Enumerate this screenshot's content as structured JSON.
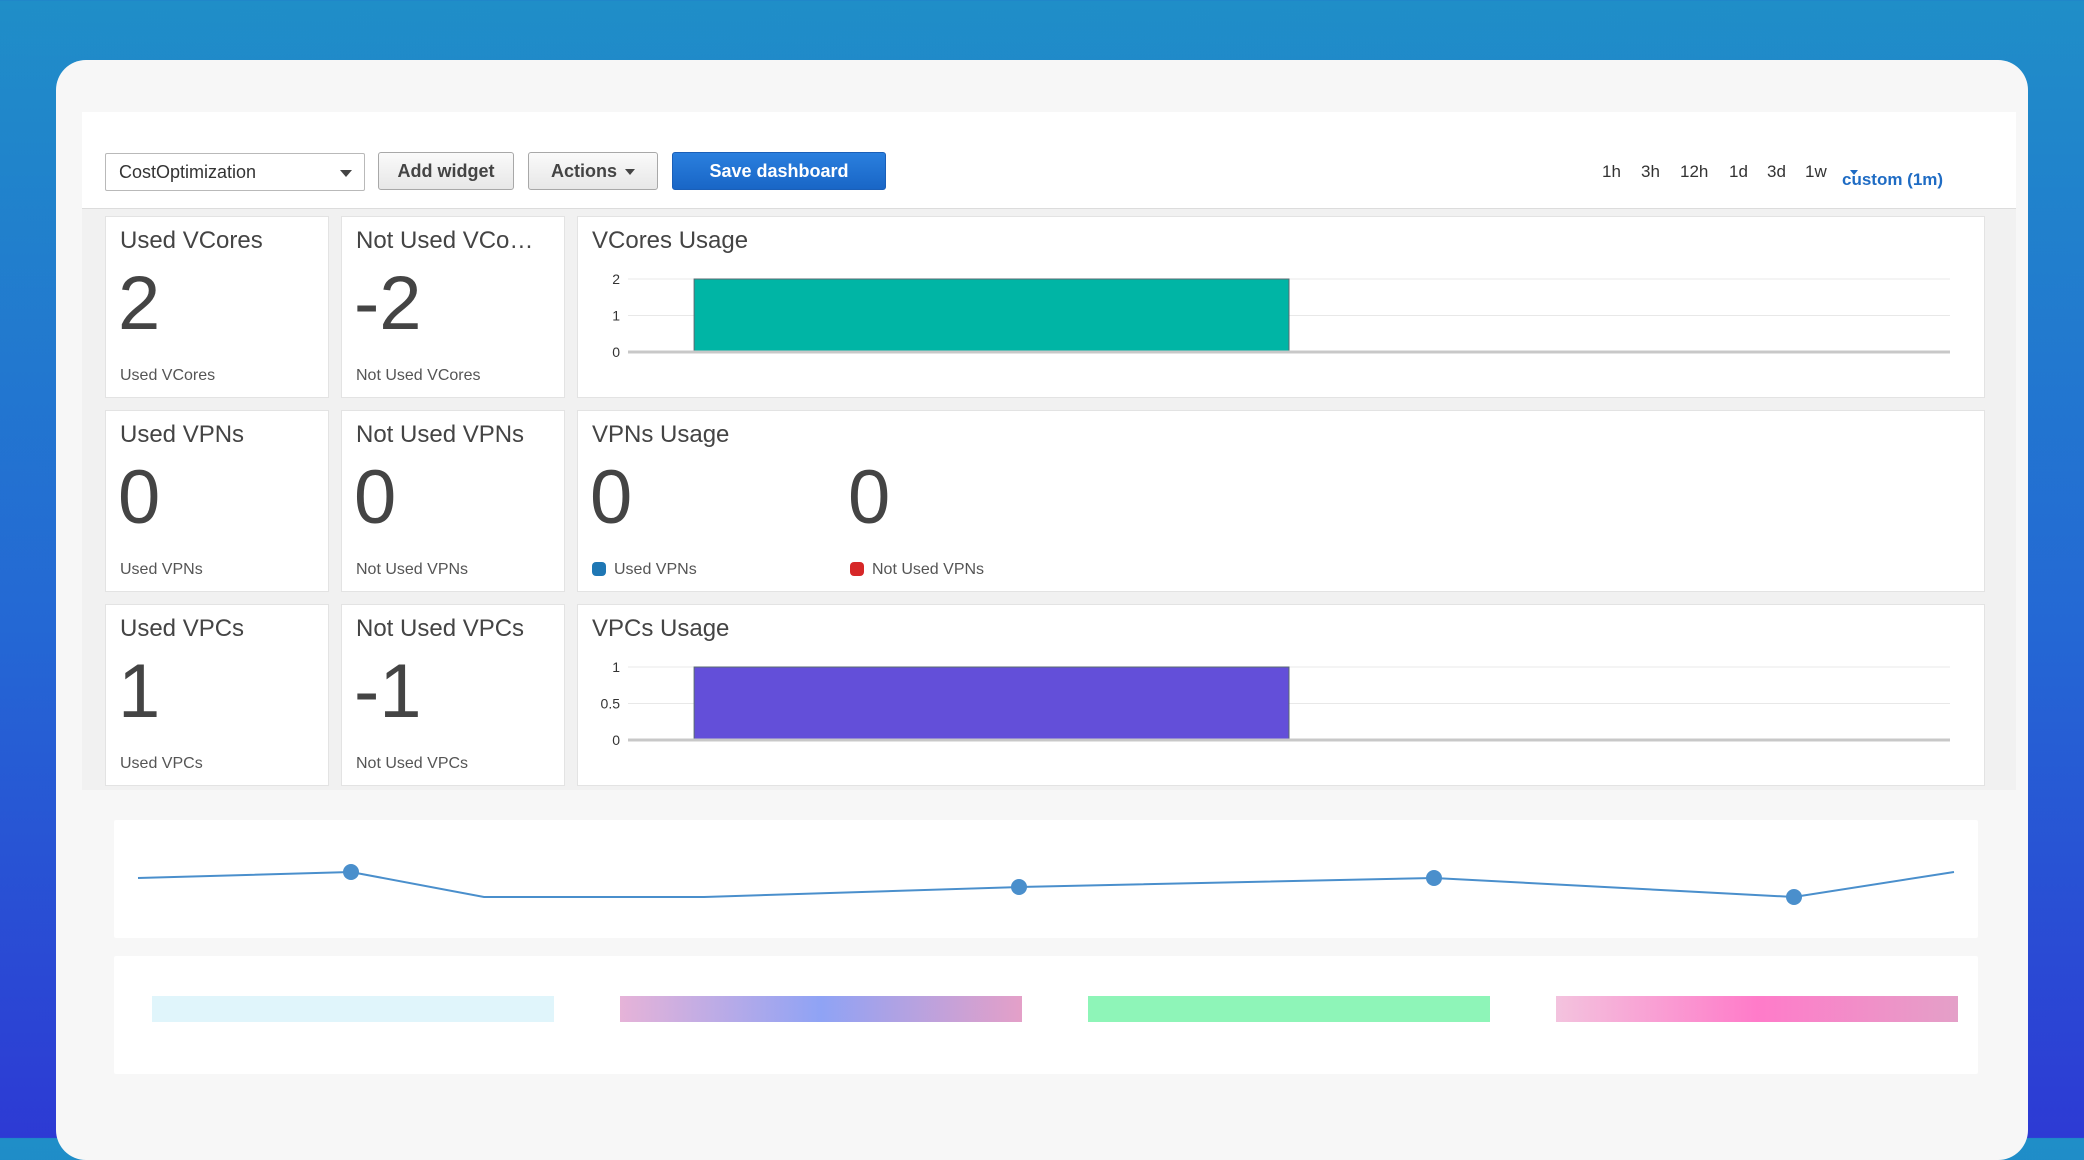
{
  "toolbar": {
    "dashboard_select": "CostOptimization",
    "add_widget": "Add widget",
    "actions": "Actions",
    "save_dashboard": "Save dashboard",
    "time_ranges": [
      "1h",
      "3h",
      "12h",
      "1d",
      "3d",
      "1w"
    ],
    "custom_range": "custom (1m)"
  },
  "widgets": {
    "used_vcores": {
      "title": "Used VCores",
      "value": "2",
      "label": "Used VCores"
    },
    "not_used_vcores": {
      "title": "Not Used VCo…",
      "value": "-2",
      "label": "Not Used VCores"
    },
    "vcores_usage": {
      "title": "VCores Usage"
    },
    "used_vpns": {
      "title": "Used VPNs",
      "value": "0",
      "label": "Used VPNs"
    },
    "not_used_vpns": {
      "title": "Not Used VPNs",
      "value": "0",
      "label": "Not Used VPNs"
    },
    "vpns_usage": {
      "title": "VPNs Usage",
      "used_value": "0",
      "not_used_value": "0",
      "used_label": "Used VPNs",
      "not_used_label": "Not Used VPNs",
      "used_color": "#1f77b4",
      "not_used_color": "#d62728"
    },
    "used_vpcs": {
      "title": "Used VPCs",
      "value": "1",
      "label": "Used VPCs"
    },
    "not_used_vpcs": {
      "title": "Not Used VPCs",
      "value": "-1",
      "label": "Not Used VPCs"
    },
    "vpcs_usage": {
      "title": "VPCs Usage"
    }
  },
  "chart_data": [
    {
      "type": "bar",
      "title": "VCores Usage",
      "yticks": [
        "0",
        "1",
        "2"
      ],
      "ylim": [
        0,
        2
      ],
      "series": [
        {
          "values": [
            2
          ],
          "color": "#00b5a5"
        }
      ],
      "bar_span_fraction": [
        0.05,
        0.5
      ],
      "grid": true
    },
    {
      "type": "bar",
      "title": "VPCs Usage",
      "yticks": [
        "0",
        "0.5",
        "1"
      ],
      "ylim": [
        0,
        1
      ],
      "series": [
        {
          "values": [
            1
          ],
          "color": "#634fd9"
        }
      ],
      "bar_span_fraction": [
        0.05,
        0.5
      ],
      "grid": true
    }
  ],
  "decor": {
    "line_color": "#4a8fcc",
    "swatches": [
      "linear-gradient(90deg,#e0f5fb,#e0f5fb)",
      "linear-gradient(90deg,#e6b3d8,#8fa3f5,#e4a0c8)",
      "linear-gradient(90deg,#8ef5b8,#8ef5b8)",
      "linear-gradient(90deg,#f3c3de,#ff7bc9,#e4a0c8)"
    ]
  }
}
